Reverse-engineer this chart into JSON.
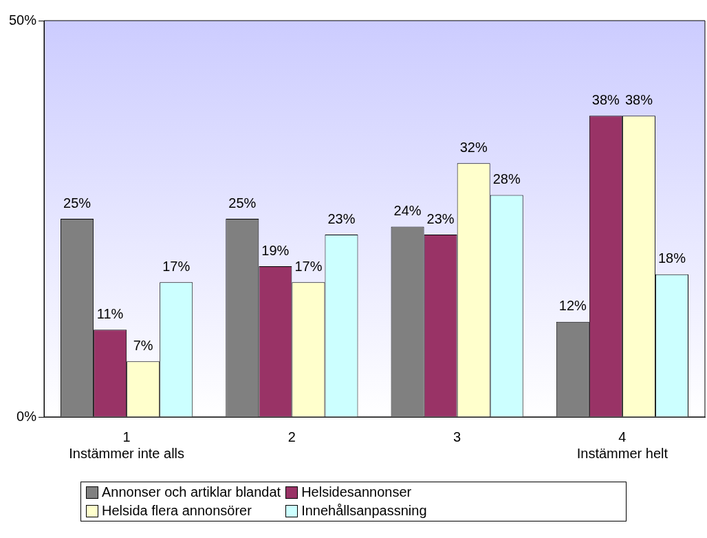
{
  "chart_data": {
    "type": "bar",
    "categories": [
      "1\nInstämmer inte alls",
      "2",
      "3",
      "4\nInstämmer helt"
    ],
    "series": [
      {
        "name": "Annonser och artiklar blandat",
        "color": "#808080",
        "values": [
          25,
          25,
          24,
          12
        ],
        "value_labels": [
          "25%",
          "25%",
          "24%",
          "12%"
        ]
      },
      {
        "name": "Helsidesannonser",
        "color": "#993366",
        "values": [
          11,
          19,
          23,
          38
        ],
        "value_labels": [
          "11%",
          "19%",
          "23%",
          "38%"
        ]
      },
      {
        "name": "Helsida flera annonsörer",
        "color": "#ffffcc",
        "values": [
          7,
          17,
          32,
          38
        ],
        "value_labels": [
          "7%",
          "17%",
          "32%",
          "38%"
        ]
      },
      {
        "name": "Innehållsanpassning",
        "color": "#ccffff",
        "values": [
          17,
          23,
          28,
          18
        ],
        "value_labels": [
          "17%",
          "23%",
          "28%",
          "18%"
        ]
      }
    ],
    "ylim": [
      0,
      50
    ],
    "yticks": [
      {
        "value": 0,
        "label": "0%"
      },
      {
        "value": 50,
        "label": "50%"
      }
    ],
    "grid": false,
    "legend": "bottom"
  }
}
